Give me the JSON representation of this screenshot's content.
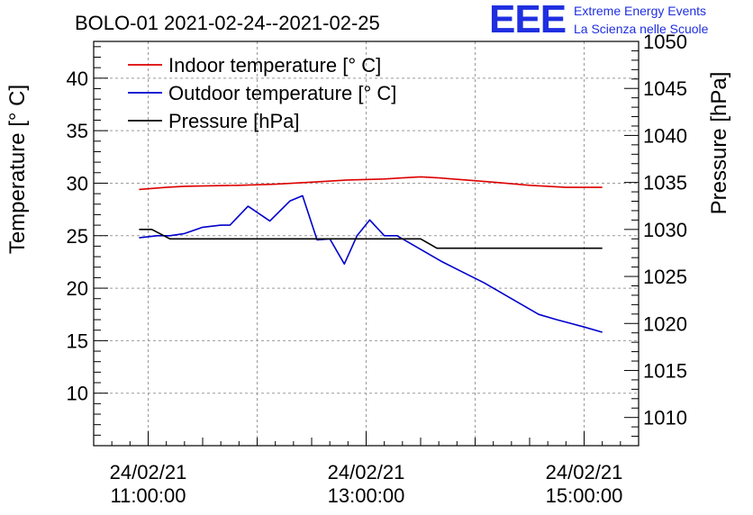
{
  "chart_data": {
    "type": "line",
    "title": "BOLO-01 2021-02-24--2021-02-25",
    "ylabel": "Temperature [° C]",
    "y2label": "Pressure [hPa]",
    "ylim": [
      5,
      43.5
    ],
    "y2lim": [
      1007,
      1050
    ],
    "yticks": [
      10,
      15,
      20,
      25,
      30,
      35,
      40
    ],
    "y2ticks": [
      1010,
      1015,
      1020,
      1025,
      1030,
      1035,
      1040,
      1045,
      1050
    ],
    "x_ticks": [
      {
        "t": 0,
        "date": "24/02/21",
        "time": "11:00:00"
      },
      {
        "t": 120,
        "date": "24/02/21",
        "time": "13:00:00"
      },
      {
        "t": 240,
        "date": "24/02/21",
        "time": "15:00:00"
      }
    ],
    "xlim": [
      -30,
      270
    ],
    "grid": true,
    "legend_position": "top-left",
    "series": [
      {
        "name": "Indoor temperature [° C]",
        "color": "#dd0000",
        "axis": "left",
        "x": [
          -5,
          10,
          20,
          50,
          70,
          90,
          110,
          130,
          140,
          150,
          160,
          175,
          190,
          210,
          230,
          240,
          250
        ],
        "y": [
          29.4,
          29.6,
          29.7,
          29.8,
          29.9,
          30.1,
          30.3,
          30.4,
          30.5,
          30.6,
          30.5,
          30.3,
          30.1,
          29.8,
          29.6,
          29.6,
          29.6
        ]
      },
      {
        "name": "Outdoor temperature [° C]",
        "color": "#0000cc",
        "axis": "left",
        "x": [
          -5,
          5,
          12,
          20,
          30,
          40,
          45,
          55,
          67,
          78,
          85,
          93,
          100,
          108,
          115,
          122,
          130,
          137,
          147,
          162,
          185,
          200,
          215,
          225,
          240,
          250
        ],
        "y": [
          24.8,
          25.0,
          25.0,
          25.2,
          25.8,
          26.0,
          26.0,
          27.8,
          26.4,
          28.3,
          28.8,
          24.6,
          24.7,
          22.3,
          25.0,
          26.5,
          25.0,
          25.0,
          24.0,
          22.5,
          20.5,
          19.0,
          17.5,
          17.0,
          16.3,
          15.8
        ]
      },
      {
        "name": "Pressure [hPa]",
        "color": "#000000",
        "axis": "right",
        "x": [
          -5,
          2,
          12,
          150,
          159,
          200,
          250
        ],
        "y": [
          1030,
          1030,
          1029,
          1029,
          1028,
          1028,
          1028
        ]
      }
    ]
  },
  "logo": {
    "mark": "EEE",
    "line1": "Extreme Energy Events",
    "line2": "La Scienza nelle Scuole",
    "color": "#1f2fe0"
  }
}
